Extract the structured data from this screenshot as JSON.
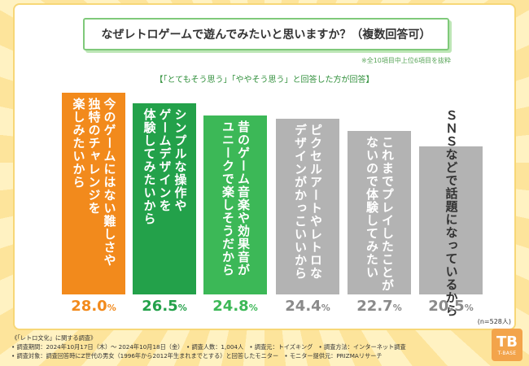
{
  "chart_data": {
    "type": "bar",
    "title": "なぜレトロゲームで遊んでみたいと思いますか？（複数回答可）",
    "note": "※全10項目中上位6項目を抜粋",
    "subtitle": "【「とてもそう思う」「ややそう思う」と回答した方が回答】",
    "categories": [
      "今のゲームにはない難しさや\n独特のチャレンジを\n楽しみたいから",
      "シンプルな操作や\nゲームデザインを\n体験してみたいから",
      "昔のゲーム音楽や効果音が\nユニークで楽しそうだから",
      "ピクセルアートやレトロな\nデザインがかっこいいから",
      "これまでプレイしたことが\nないので体験してみたい",
      "ＳＮＳなどで話題になっているから"
    ],
    "values": [
      28.0,
      26.5,
      24.8,
      24.4,
      22.7,
      20.5
    ],
    "value_labels": [
      "28.0",
      "26.5",
      "24.8",
      "24.4",
      "22.7",
      "20.5"
    ],
    "unit": "%",
    "n_label": "(n=528人)",
    "ylim": [
      0,
      28.0
    ],
    "colors": [
      "#f28a1c",
      "#23a14a",
      "#3cb857",
      "#b3b3b3",
      "#b3b3b3",
      "#b3b3b3"
    ],
    "pct_colors": [
      "#f28a1c",
      "#23a14a",
      "#3cb857",
      "#8a8a8a",
      "#8a8a8a",
      "#8a8a8a"
    ]
  },
  "footer": {
    "line1": "《「レトロ文化」に関する調査》",
    "line2": "• 調査期間：2024年10月17日（木）～ 2024年10月18日（金）　• 調査人数：1,004人　• 調査元：トイズキング　• 調査方法：インターネット調査",
    "line3": "• 調査対象：調査回答時にZ世代の男女（1996年から2012年生まれまでとする）と回答したモニター　• モニター提供元：PRIZMAリサーチ"
  },
  "logo": {
    "big": "TB",
    "small": "T-BASE"
  }
}
